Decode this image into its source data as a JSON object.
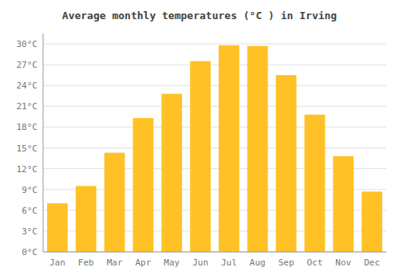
{
  "chart_data": {
    "type": "bar",
    "title": "Average monthly temperatures (°C ) in Irving",
    "categories": [
      "Jan",
      "Feb",
      "Mar",
      "Apr",
      "May",
      "Jun",
      "Jul",
      "Aug",
      "Sep",
      "Oct",
      "Nov",
      "Dec"
    ],
    "values": [
      7.0,
      9.5,
      14.3,
      19.3,
      22.8,
      27.5,
      29.8,
      29.7,
      25.5,
      19.8,
      13.8,
      8.7
    ],
    "color": "#FFC125",
    "ylim": [
      0,
      31.5
    ],
    "yticks": [
      {
        "value": 0,
        "label": "0°C"
      },
      {
        "value": 3,
        "label": "3°C"
      },
      {
        "value": 6,
        "label": "6°C"
      },
      {
        "value": 9,
        "label": "9°C"
      },
      {
        "value": 12,
        "label": "12°C"
      },
      {
        "value": 15,
        "label": "15°C"
      },
      {
        "value": 18,
        "label": "18°C"
      },
      {
        "value": 21,
        "label": "21°C"
      },
      {
        "value": 24,
        "label": "24°C"
      },
      {
        "value": 27,
        "label": "27°C"
      },
      {
        "value": 30,
        "label": "30°C"
      }
    ],
    "grid": true
  }
}
